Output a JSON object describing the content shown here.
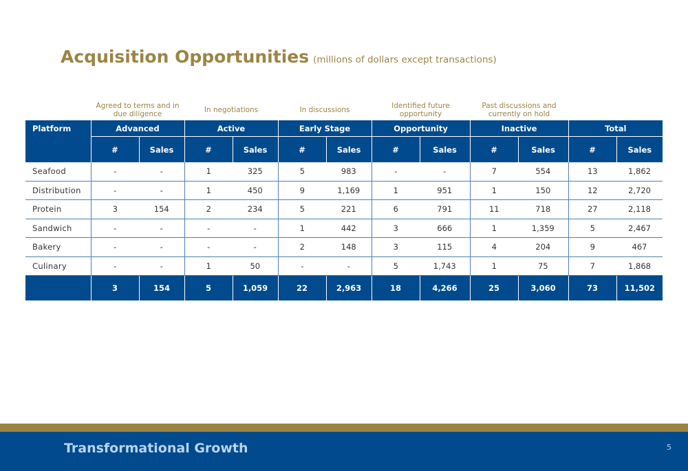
{
  "title": "Acquisition Opportunities",
  "subtitle": "(millions of dollars except transactions)",
  "group_descriptions": [
    {
      "line1": "Agreed to terms and in",
      "line2": "due diligence"
    },
    {
      "line1": "In negotiations",
      "line2": ""
    },
    {
      "line1": "In discussions",
      "line2": ""
    },
    {
      "line1": "Identified future",
      "line2": "opportunity"
    },
    {
      "line1": "Past discussions and",
      "line2": "currently on hold"
    }
  ],
  "table": {
    "first_header": "Platform",
    "groups": [
      "Advanced",
      "Active",
      "Early Stage",
      "Opportunity",
      "Inactive",
      "Total"
    ],
    "sub_headers": {
      "count": "#",
      "sales": "Sales"
    },
    "rows": [
      {
        "label": "Seafood",
        "values": [
          "-",
          "-",
          "1",
          "325",
          "5",
          "983",
          "-",
          "-",
          "7",
          "554",
          "13",
          "1,862"
        ]
      },
      {
        "label": "Distribution",
        "values": [
          "-",
          "-",
          "1",
          "450",
          "9",
          "1,169",
          "1",
          "951",
          "1",
          "150",
          "12",
          "2,720"
        ]
      },
      {
        "label": "Protein",
        "values": [
          "3",
          "154",
          "2",
          "234",
          "5",
          "221",
          "6",
          "791",
          "11",
          "718",
          "27",
          "2,118"
        ]
      },
      {
        "label": "Sandwich",
        "values": [
          "-",
          "-",
          "-",
          "-",
          "1",
          "442",
          "3",
          "666",
          "1",
          "1,359",
          "5",
          "2,467"
        ]
      },
      {
        "label": "Bakery",
        "values": [
          "-",
          "-",
          "-",
          "-",
          "2",
          "148",
          "3",
          "115",
          "4",
          "204",
          "9",
          "467"
        ]
      },
      {
        "label": "Culinary",
        "values": [
          "-",
          "-",
          "1",
          "50",
          "-",
          "-",
          "5",
          "1,743",
          "1",
          "75",
          "7",
          "1,868"
        ]
      }
    ],
    "total_row": {
      "label": "",
      "values": [
        "3",
        "154",
        "5",
        "1,059",
        "22",
        "2,963",
        "18",
        "4,266",
        "25",
        "3,060",
        "73",
        "11,502"
      ]
    }
  },
  "footer": {
    "title": "Transformational Growth",
    "page_number": "5"
  },
  "colors": {
    "gold": "#9b8443",
    "navy": "#004a8d",
    "footer_text": "#bcd3ee",
    "row_line": "#4e7fb3"
  }
}
